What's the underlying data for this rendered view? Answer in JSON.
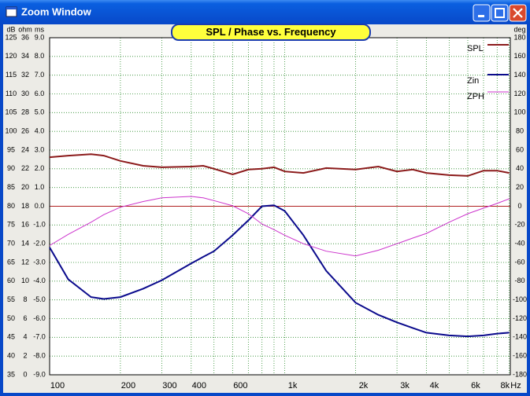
{
  "window": {
    "title": "Zoom Window"
  },
  "chart_data": {
    "type": "line",
    "title": "SPL / Phase vs. Frequency",
    "xlabel": "Hz",
    "xscale": "log",
    "xlim": [
      100,
      9100
    ],
    "xticks": [
      100,
      200,
      300,
      400,
      {
        "value": 500,
        "label": null
      },
      600,
      {
        "value": 700,
        "label": null
      },
      {
        "value": 800,
        "label": null
      },
      {
        "value": 900,
        "label": null
      },
      {
        "value": 1000,
        "label": "1k"
      },
      {
        "value": 2000,
        "label": "2k"
      },
      {
        "value": 3000,
        "label": "3k"
      },
      {
        "value": 4000,
        "label": "4k"
      },
      {
        "value": 5000,
        "label": null
      },
      {
        "value": 6000,
        "label": "6k"
      },
      {
        "value": 7000,
        "label": null
      },
      {
        "value": 8000,
        "label": "8k"
      },
      {
        "value": 9000,
        "label": null
      }
    ],
    "grid": true,
    "y_axes": [
      {
        "label": "dB",
        "ylim": [
          35,
          125
        ],
        "yticks": [
          35,
          40,
          45,
          50,
          55,
          60,
          65,
          70,
          75,
          80,
          85,
          90,
          95,
          100,
          105,
          110,
          115,
          120,
          125
        ]
      },
      {
        "label": "ohm",
        "ylim": [
          0,
          36
        ],
        "yticks": [
          0,
          2,
          4,
          6,
          8,
          10,
          12,
          14,
          16,
          18,
          20,
          22,
          24,
          26,
          28,
          30,
          32,
          34,
          36
        ]
      },
      {
        "label": "ms",
        "ylim": [
          -9,
          9
        ],
        "yticks": [
          {
            "value": -9,
            "label": "-9.0"
          },
          {
            "value": -8,
            "label": "-8.0"
          },
          {
            "value": -7,
            "label": "-7.0"
          },
          {
            "value": -6,
            "label": "-6.0"
          },
          {
            "value": -5,
            "label": "-5.0"
          },
          {
            "value": -4,
            "label": "-4.0"
          },
          {
            "value": -3,
            "label": "-3.0"
          },
          {
            "value": -2,
            "label": "-2.0"
          },
          {
            "value": -1,
            "label": "-1.0"
          },
          {
            "value": 0,
            "label": "0.0"
          },
          {
            "value": 1,
            "label": "1.0"
          },
          {
            "value": 2,
            "label": "2.0"
          },
          {
            "value": 3,
            "label": "3.0"
          },
          {
            "value": 4,
            "label": "4.0"
          },
          {
            "value": 5,
            "label": "5.0"
          },
          {
            "value": 6,
            "label": "6.0"
          },
          {
            "value": 7,
            "label": "7.0"
          },
          {
            "value": 8,
            "label": "8.0"
          },
          {
            "value": 9,
            "label": "9.0"
          }
        ]
      }
    ],
    "y2label": "deg",
    "y2lim": [
      -180,
      180
    ],
    "y2ticks": [
      -180,
      -160,
      -140,
      -120,
      -100,
      -80,
      -60,
      -40,
      -20,
      0,
      20,
      40,
      60,
      80,
      100,
      120,
      140,
      160,
      180
    ],
    "x": [
      100,
      120,
      150,
      170,
      200,
      250,
      300,
      400,
      450,
      500,
      600,
      700,
      800,
      900,
      1000,
      1200,
      1500,
      2000,
      2500,
      3000,
      3500,
      4000,
      5000,
      6000,
      7000,
      8000,
      9000
    ],
    "series": [
      {
        "name": "SPL",
        "color": "#8b1a1a",
        "axis": "dB",
        "values": [
          93.1,
          93.5,
          93.9,
          93.5,
          92.1,
          90.8,
          90.4,
          90.6,
          90.8,
          90.0,
          88.5,
          89.8,
          90.0,
          90.4,
          89.3,
          88.9,
          90.2,
          89.8,
          90.6,
          89.3,
          89.8,
          88.9,
          88.3,
          88.1,
          89.5,
          89.5,
          88.9
        ]
      },
      {
        "name": "Zin",
        "color": "#0a0a8c",
        "axis": "ohm",
        "values": [
          13.6,
          10.2,
          8.3,
          8.1,
          8.3,
          9.2,
          10.1,
          11.9,
          12.6,
          13.2,
          14.9,
          16.5,
          18.0,
          18.1,
          17.5,
          14.9,
          11.1,
          7.7,
          6.4,
          5.6,
          5.0,
          4.5,
          4.2,
          4.1,
          4.2,
          4.4,
          4.5
        ]
      },
      {
        "name": "ZPH",
        "color": "#cc33cc",
        "axis": "y2",
        "values": [
          -42,
          -30,
          -17,
          -9,
          -1,
          5,
          9,
          10.5,
          9,
          6,
          0.5,
          -8,
          -19,
          -25,
          -31,
          -40,
          -48,
          -53,
          -47,
          -40,
          -34,
          -29,
          -17,
          -8,
          -2,
          3,
          8
        ]
      }
    ]
  }
}
